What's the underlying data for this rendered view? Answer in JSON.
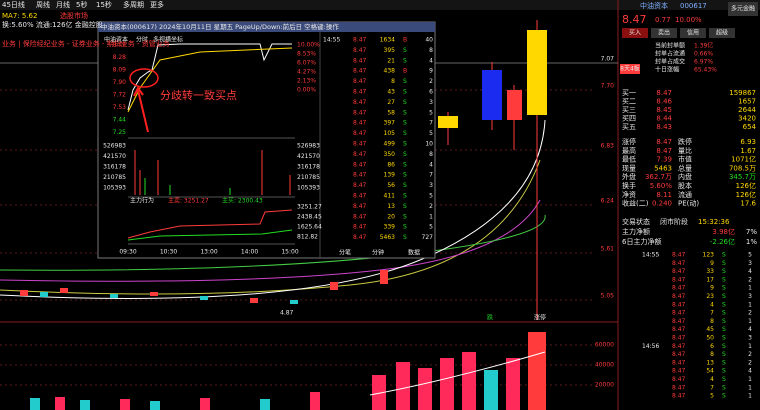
{
  "toolbar": {
    "items": [
      "45日线",
      "周线",
      "月线",
      "5秒",
      "15秒",
      "多周期",
      "更多"
    ],
    "ma_line": "MA7: 5.62",
    "ma_tag": "选股市场",
    "info_line": "换:5.60% 流通:126亿 金融控股",
    "concept_line": "业务 | 保险经纪业务 - 证券业务 - 期货业务 - 资管业务"
  },
  "main_chart": {
    "axis_labels": [
      "7.70",
      "7.07",
      "6.83",
      "6.24",
      "5.61",
      "5.05"
    ],
    "low_label": "4.87",
    "bottom_tags": [
      "跌",
      "涨停"
    ],
    "volume_axis": [
      "60000",
      "40000",
      "20000"
    ]
  },
  "popup": {
    "title": "中油资本(000617) 2024年10月11日 星期五 PageUp/Down:前后日 空格键:操作",
    "subtitle": [
      "中油资本",
      "分时",
      "多视横坐标"
    ],
    "price_labels": [
      "8.47",
      "8.28",
      "8.09",
      "7.90",
      "7.72",
      "7.53",
      "7.44",
      "7.25"
    ],
    "pct_labels": [
      "10.00%",
      "8.53%",
      "6.07%",
      "4.27%",
      "2.13%",
      "0.00%"
    ],
    "volume_labels": [
      "526983",
      "421570",
      "316178",
      "210785",
      "105393"
    ],
    "flow_title": "主力行为",
    "flow_sell": "主卖: 3251.27",
    "flow_buy": "主买: 2300.43",
    "flow_labels": [
      "3251.27",
      "2438.45",
      "1625.64",
      "812.82"
    ],
    "times": [
      "09:30",
      "10:30",
      "13:00",
      "14:00",
      "15:00"
    ],
    "tabs": [
      "分笔",
      "分钟",
      "数据"
    ],
    "trades": [
      {
        "time": "14:55",
        "rows": [
          [
            "8.47",
            "1634",
            "B",
            "40"
          ],
          [
            "8.47",
            "395",
            "S",
            "8"
          ],
          [
            "8.47",
            "21",
            "S",
            "4"
          ],
          [
            "8.47",
            "438",
            "B",
            "9"
          ],
          [
            "8.47",
            "8",
            "S",
            "2"
          ],
          [
            "8.47",
            "43",
            "S",
            "6"
          ],
          [
            "8.47",
            "27",
            "S",
            "3"
          ],
          [
            "8.47",
            "58",
            "S",
            "5"
          ],
          [
            "8.47",
            "397",
            "S",
            "7"
          ],
          [
            "8.47",
            "105",
            "S",
            "5"
          ],
          [
            "8.47",
            "499",
            "S",
            "10"
          ],
          [
            "8.47",
            "350",
            "S",
            "8"
          ],
          [
            "8.47",
            "86",
            "S",
            "4"
          ],
          [
            "8.47",
            "139",
            "S",
            "7"
          ],
          [
            "8.47",
            "56",
            "S",
            "3"
          ],
          [
            "8.47",
            "411",
            "S",
            "5"
          ],
          [
            "8.47",
            "13",
            "S",
            "2"
          ],
          [
            "8.47",
            "20",
            "S",
            "1"
          ],
          [
            "8.47",
            "339",
            "S",
            "5"
          ],
          [
            "8.47",
            "5463",
            "S",
            "727"
          ]
        ]
      }
    ]
  },
  "annotation": "分歧转一致买点",
  "quote": {
    "name": "中油资本",
    "code": "000617",
    "sector": "多元金融",
    "price": "8.47",
    "change": "0.77",
    "pct": "10.00%",
    "buttons": [
      "买入",
      "卖出",
      "信用",
      "超级"
    ],
    "tag": "8天4板",
    "info": [
      [
        "当前封单额",
        "1.39亿"
      ],
      [
        "封单占流通",
        "0.66%"
      ],
      [
        "封单占成交",
        "6.97%"
      ],
      [
        "十日涨幅",
        "65.43%"
      ]
    ],
    "book": [
      [
        "买一",
        "8.47",
        "159867"
      ],
      [
        "买二",
        "8.46",
        "1657"
      ],
      [
        "买三",
        "8.45",
        "2644"
      ],
      [
        "买四",
        "8.44",
        "3420"
      ],
      [
        "买五",
        "8.43",
        "654"
      ]
    ],
    "stats": [
      [
        "涨停",
        "8.47",
        "跌停",
        "6.93"
      ],
      [
        "最高",
        "8.47",
        "量比",
        "1.67"
      ],
      [
        "最低",
        "7.39",
        "市值",
        "1071亿"
      ],
      [
        "现量",
        "5463",
        "总量",
        "708.5万"
      ],
      [
        "外盘",
        "362.7万",
        "内盘",
        "345.7万"
      ],
      [
        "换手",
        "5.60%",
        "股本",
        "126亿"
      ],
      [
        "净资",
        "8.11",
        "流通",
        "126亿"
      ],
      [
        "收益(二)",
        "0.240",
        "PE(动)",
        "17.6"
      ]
    ],
    "status": [
      "交易状态",
      "闭市阶段",
      "15:32:36"
    ],
    "flows": [
      [
        "主力净额",
        "3.98亿",
        "7%"
      ],
      [
        "6日主力净额",
        "-2.26亿",
        "1%"
      ]
    ],
    "trades": [
      {
        "time": "14:55",
        "rows": [
          [
            "8.47",
            "123",
            "S",
            "5"
          ],
          [
            "8.47",
            "9",
            "S",
            "3"
          ],
          [
            "8.47",
            "33",
            "S",
            "4"
          ],
          [
            "8.47",
            "17",
            "S",
            "2"
          ],
          [
            "8.47",
            "9",
            "S",
            "1"
          ],
          [
            "8.47",
            "23",
            "S",
            "3"
          ],
          [
            "8.47",
            "4",
            "S",
            "1"
          ],
          [
            "8.47",
            "7",
            "S",
            "2"
          ],
          [
            "8.47",
            "8",
            "S",
            "1"
          ],
          [
            "8.47",
            "45",
            "S",
            "4"
          ],
          [
            "8.47",
            "50",
            "S",
            "3"
          ]
        ]
      },
      {
        "time": "14:56",
        "rows": [
          [
            "8.47",
            "6",
            "S",
            "1"
          ],
          [
            "8.47",
            "8",
            "S",
            "2"
          ],
          [
            "8.47",
            "13",
            "S",
            "2"
          ],
          [
            "8.47",
            "54",
            "S",
            "4"
          ],
          [
            "8.47",
            "4",
            "S",
            "1"
          ],
          [
            "8.47",
            "7",
            "S",
            "1"
          ],
          [
            "8.47",
            "5",
            "S",
            "1"
          ]
        ]
      }
    ]
  }
}
